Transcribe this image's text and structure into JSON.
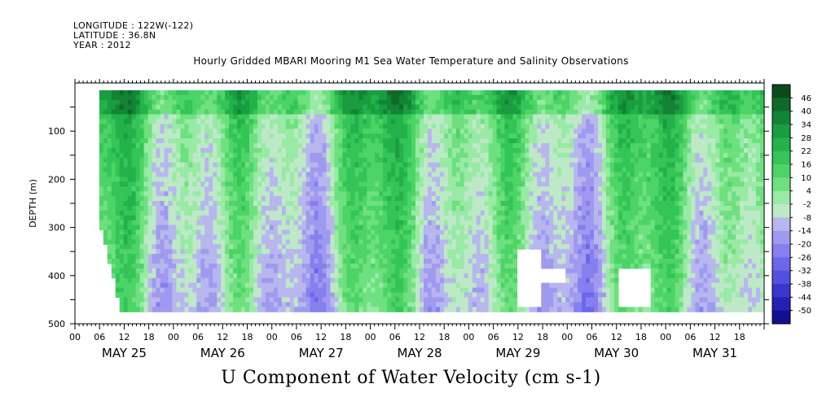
{
  "header": {
    "longitude": "LONGITUDE : 122W(-122)",
    "latitude": "LATITUDE : 36.8N",
    "year": "YEAR : 2012"
  },
  "chart_data": {
    "type": "heatmap",
    "title": "Hourly Gridded MBARI Mooring M1 Sea Water Temperature and Salinity Observations",
    "xlabel": "U Component of Water Velocity (cm s-1)",
    "ylabel": "DEPTH (m)",
    "x_hour_ticks": [
      "00",
      "06",
      "12",
      "18"
    ],
    "x_days": [
      "MAY 25",
      "MAY 26",
      "MAY 27",
      "MAY 28",
      "MAY 29",
      "MAY 30",
      "MAY 31"
    ],
    "xlim_hours_from_may25_00": [
      0,
      168
    ],
    "y_ticks": [
      100,
      200,
      300,
      400,
      500
    ],
    "ylim": [
      500,
      0
    ],
    "colorbar_labels": [
      "46",
      "40",
      "34",
      "28",
      "22",
      "16",
      "10",
      "4",
      "-2",
      "-8",
      "-14",
      "-20",
      "-26",
      "-32",
      "-38",
      "-44",
      "-50"
    ],
    "colorbar_colors": [
      "#0b4a1f",
      "#0f6a2a",
      "#138436",
      "#1a9c40",
      "#23b14a",
      "#34c457",
      "#4dd466",
      "#6ee07f",
      "#98eaa5",
      "#bde9c6",
      "#b8b6ee",
      "#9f9af0",
      "#8680ee",
      "#6c66ea",
      "#5150e0",
      "#3a36d0",
      "#2520b4",
      "#13108f"
    ],
    "colorbar_range": [
      -50,
      46
    ]
  }
}
